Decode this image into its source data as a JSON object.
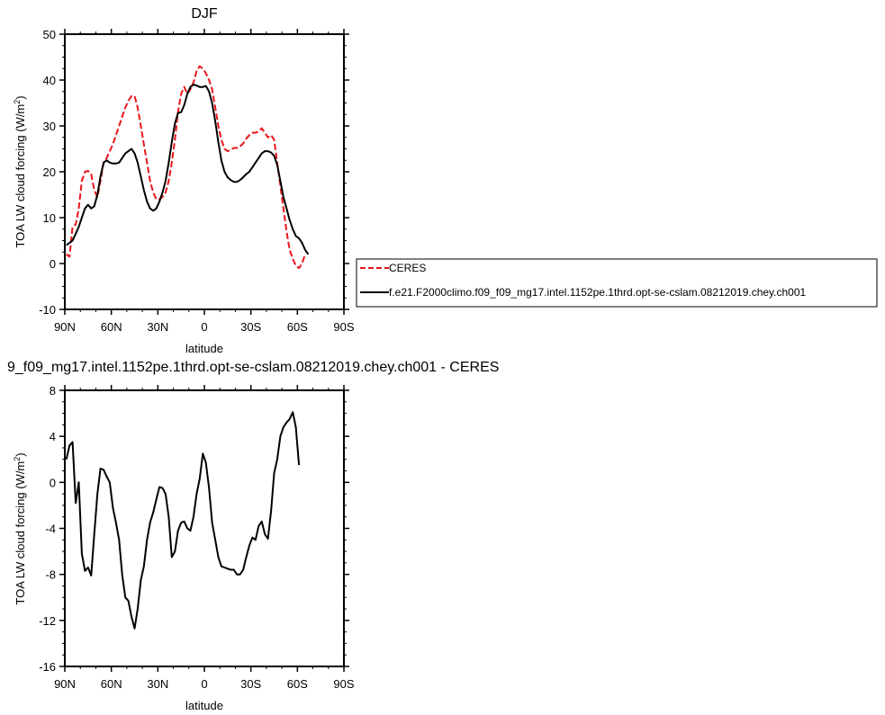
{
  "chart_data": [
    {
      "type": "line",
      "title": "DJF",
      "xlabel": "latitude",
      "ylabel": "TOA LW cloud forcing (W/m",
      "ylabel_sup": "2",
      "ylabel_close": ")",
      "xlim": [
        90,
        -90
      ],
      "ylim": [
        -10,
        50
      ],
      "x_ticks": [
        90,
        60,
        30,
        0,
        -30,
        -60,
        -90
      ],
      "x_tick_labels": [
        "90N",
        "60N",
        "30N",
        "0",
        "30S",
        "60S",
        "90S"
      ],
      "y_ticks": [
        -10,
        0,
        10,
        20,
        30,
        40,
        50
      ],
      "y_tick_labels": [
        "-10",
        "0",
        "10",
        "20",
        "30",
        "40",
        "50"
      ],
      "grid": false,
      "legend_position": "right",
      "series": [
        {
          "name": "CERES",
          "color": "#e8161b",
          "dash": "dashed",
          "points": [
            [
              89,
              2
            ],
            [
              87,
              1.5
            ],
            [
              85,
              8
            ],
            [
              83,
              8.5
            ],
            [
              81,
              12
            ],
            [
              79,
              18
            ],
            [
              77,
              20
            ],
            [
              75,
              20.2
            ],
            [
              73,
              19.5
            ],
            [
              71,
              16
            ],
            [
              69,
              14.5
            ],
            [
              67,
              18
            ],
            [
              65,
              22
            ],
            [
              63,
              23
            ],
            [
              61,
              24.5
            ],
            [
              59,
              26
            ],
            [
              57,
              28
            ],
            [
              55,
              30
            ],
            [
              53,
              32
            ],
            [
              51,
              34
            ],
            [
              49,
              35.5
            ],
            [
              47,
              36.5
            ],
            [
              45,
              36.5
            ],
            [
              43,
              34
            ],
            [
              41,
              30
            ],
            [
              39,
              26
            ],
            [
              37,
              22
            ],
            [
              35,
              18
            ],
            [
              33,
              15.5
            ],
            [
              31,
              14
            ],
            [
              29,
              14
            ],
            [
              27,
              14.5
            ],
            [
              25,
              15.5
            ],
            [
              23,
              18
            ],
            [
              21,
              22
            ],
            [
              19,
              27
            ],
            [
              17,
              33
            ],
            [
              15,
              37
            ],
            [
              13,
              38.5
            ],
            [
              11,
              37
            ],
            [
              9,
              38
            ],
            [
              7,
              39.5
            ],
            [
              5,
              42
            ],
            [
              3,
              43
            ],
            [
              1,
              42.5
            ],
            [
              -1,
              41.5
            ],
            [
              -3,
              40
            ],
            [
              -5,
              38
            ],
            [
              -7,
              34
            ],
            [
              -9,
              30
            ],
            [
              -11,
              27
            ],
            [
              -13,
              25
            ],
            [
              -15,
              24.5
            ],
            [
              -17,
              24.8
            ],
            [
              -19,
              25.2
            ],
            [
              -21,
              25.2
            ],
            [
              -23,
              25.5
            ],
            [
              -25,
              26.2
            ],
            [
              -27,
              27.2
            ],
            [
              -29,
              28
            ],
            [
              -31,
              28.5
            ],
            [
              -33,
              28.5
            ],
            [
              -35,
              28.8
            ],
            [
              -37,
              29.5
            ],
            [
              -39,
              28.5
            ],
            [
              -41,
              27.5
            ],
            [
              -43,
              28
            ],
            [
              -45,
              27
            ],
            [
              -47,
              22
            ],
            [
              -49,
              17
            ],
            [
              -51,
              12
            ],
            [
              -53,
              7
            ],
            [
              -55,
              3
            ],
            [
              -57,
              1
            ],
            [
              -59,
              -0.5
            ],
            [
              -61,
              -1
            ],
            [
              -63,
              0
            ],
            [
              -65,
              2
            ]
          ]
        },
        {
          "name": "f.e21.F2000climo.f09_f09_mg17.intel.1152pe.1thrd.opt-se-cslam.08212019.chey.ch001",
          "color": "#000000",
          "dash": "solid",
          "points": [
            [
              89,
              4
            ],
            [
              85,
              5
            ],
            [
              83,
              6.5
            ],
            [
              81,
              8
            ],
            [
              79,
              10
            ],
            [
              77,
              12
            ],
            [
              75,
              12.8
            ],
            [
              73,
              12
            ],
            [
              71,
              12.5
            ],
            [
              69,
              15
            ],
            [
              67,
              19
            ],
            [
              65,
              22
            ],
            [
              63,
              22.5
            ],
            [
              61,
              22
            ],
            [
              59,
              21.8
            ],
            [
              57,
              21.8
            ],
            [
              55,
              22
            ],
            [
              53,
              23
            ],
            [
              51,
              24
            ],
            [
              49,
              24.5
            ],
            [
              47,
              25
            ],
            [
              45,
              24
            ],
            [
              43,
              22
            ],
            [
              41,
              19
            ],
            [
              39,
              16
            ],
            [
              37,
              13.5
            ],
            [
              35,
              12
            ],
            [
              33,
              11.5
            ],
            [
              31,
              12
            ],
            [
              29,
              13.5
            ],
            [
              27,
              15.5
            ],
            [
              25,
              18
            ],
            [
              23,
              22
            ],
            [
              21,
              26.5
            ],
            [
              19,
              30.5
            ],
            [
              17,
              32.8
            ],
            [
              15,
              33
            ],
            [
              13,
              34.5
            ],
            [
              11,
              37
            ],
            [
              9,
              38.5
            ],
            [
              7,
              39
            ],
            [
              5,
              38.8
            ],
            [
              3,
              38.5
            ],
            [
              1,
              38.5
            ],
            [
              -1,
              38.7
            ],
            [
              -3,
              37.5
            ],
            [
              -5,
              35
            ],
            [
              -7,
              31
            ],
            [
              -9,
              26.5
            ],
            [
              -11,
              22.5
            ],
            [
              -13,
              20
            ],
            [
              -15,
              18.8
            ],
            [
              -17,
              18.2
            ],
            [
              -19,
              17.8
            ],
            [
              -21,
              17.8
            ],
            [
              -23,
              18.2
            ],
            [
              -25,
              18.8
            ],
            [
              -27,
              19.5
            ],
            [
              -29,
              20
            ],
            [
              -31,
              21
            ],
            [
              -33,
              22
            ],
            [
              -35,
              23
            ],
            [
              -37,
              24
            ],
            [
              -39,
              24.5
            ],
            [
              -41,
              24.5
            ],
            [
              -43,
              24.2
            ],
            [
              -45,
              23.5
            ],
            [
              -47,
              21.5
            ],
            [
              -49,
              18
            ],
            [
              -51,
              14.5
            ],
            [
              -53,
              12
            ],
            [
              -55,
              9.5
            ],
            [
              -57,
              7.5
            ],
            [
              -59,
              6
            ],
            [
              -61,
              5.5
            ],
            [
              -63,
              4.5
            ],
            [
              -65,
              3
            ],
            [
              -67,
              2
            ]
          ]
        }
      ]
    },
    {
      "type": "line",
      "title": "9_f09_mg17.intel.1152pe.1thrd.opt-se-cslam.08212019.chey.ch001 - CERES",
      "xlabel": "latitude",
      "ylabel": "TOA LW cloud forcing (W/m",
      "ylabel_sup": "2",
      "ylabel_close": ")",
      "xlim": [
        90,
        -90
      ],
      "ylim": [
        -16,
        8
      ],
      "x_ticks": [
        90,
        60,
        30,
        0,
        -30,
        -60,
        -90
      ],
      "x_tick_labels": [
        "90N",
        "60N",
        "30N",
        "0",
        "30S",
        "60S",
        "90S"
      ],
      "y_ticks": [
        -16,
        -12,
        -8,
        -4,
        0,
        4,
        8
      ],
      "y_tick_labels": [
        "-16",
        "-12",
        "-8",
        "-4",
        "0",
        "4",
        "8"
      ],
      "grid": false,
      "series": [
        {
          "name": "",
          "color": "#000000",
          "dash": "solid",
          "points": [
            [
              89,
              2
            ],
            [
              87,
              3.2
            ],
            [
              85,
              3.5
            ],
            [
              83,
              -1.8
            ],
            [
              81,
              0
            ],
            [
              79,
              -6.2
            ],
            [
              77,
              -7.7
            ],
            [
              75,
              -7.4
            ],
            [
              73,
              -8.1
            ],
            [
              71,
              -4.5
            ],
            [
              69,
              -1
            ],
            [
              67,
              1.2
            ],
            [
              65,
              1.1
            ],
            [
              63,
              0.5
            ],
            [
              61,
              0
            ],
            [
              59,
              -2.2
            ],
            [
              57,
              -3.5
            ],
            [
              55,
              -5
            ],
            [
              53,
              -8
            ],
            [
              51,
              -10
            ],
            [
              49,
              -10.3
            ],
            [
              47,
              -11.7
            ],
            [
              45,
              -12.7
            ],
            [
              43,
              -11
            ],
            [
              41,
              -8.5
            ],
            [
              39,
              -7.3
            ],
            [
              37,
              -5
            ],
            [
              35,
              -3.5
            ],
            [
              33,
              -2.6
            ],
            [
              31,
              -1.5
            ],
            [
              29,
              -0.4
            ],
            [
              27,
              -0.5
            ],
            [
              25,
              -1
            ],
            [
              23,
              -3
            ],
            [
              21,
              -6.5
            ],
            [
              19,
              -6
            ],
            [
              17,
              -4.2
            ],
            [
              15,
              -3.5
            ],
            [
              13,
              -3.4
            ],
            [
              11,
              -4
            ],
            [
              9,
              -4.2
            ],
            [
              7,
              -3
            ],
            [
              5,
              -1
            ],
            [
              3,
              0.3
            ],
            [
              1,
              2.5
            ],
            [
              -1,
              1.7
            ],
            [
              -3,
              -0.5
            ],
            [
              -5,
              -3.5
            ],
            [
              -7,
              -5
            ],
            [
              -9,
              -6.5
            ],
            [
              -11,
              -7.3
            ],
            [
              -13,
              -7.4
            ],
            [
              -15,
              -7.5
            ],
            [
              -17,
              -7.6
            ],
            [
              -19,
              -7.6
            ],
            [
              -21,
              -8
            ],
            [
              -23,
              -8
            ],
            [
              -25,
              -7.6
            ],
            [
              -27,
              -6.5
            ],
            [
              -29,
              -5.5
            ],
            [
              -31,
              -4.8
            ],
            [
              -33,
              -5
            ],
            [
              -35,
              -3.8
            ],
            [
              -37,
              -3.4
            ],
            [
              -39,
              -4.5
            ],
            [
              -41,
              -4.9
            ],
            [
              -43,
              -2.5
            ],
            [
              -45,
              0.8
            ],
            [
              -47,
              2
            ],
            [
              -49,
              4
            ],
            [
              -51,
              4.8
            ],
            [
              -53,
              5.2
            ],
            [
              -55,
              5.5
            ],
            [
              -57,
              6.1
            ],
            [
              -59,
              4.8
            ],
            [
              -61,
              1.5
            ]
          ]
        }
      ]
    }
  ]
}
